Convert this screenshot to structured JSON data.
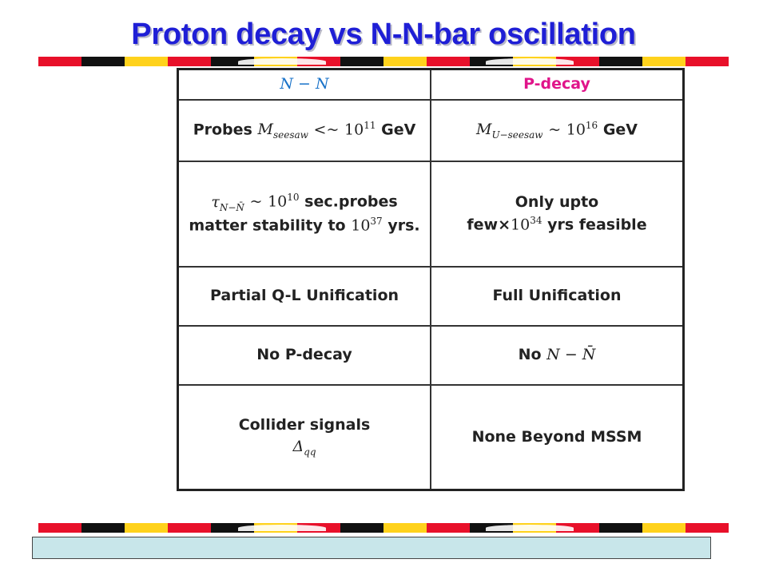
{
  "slide": {
    "title": "Proton decay vs N-N-bar oscillation"
  },
  "colors": {
    "title": "#1f1fd6",
    "stripe": [
      "#e8102a",
      "#111111",
      "#ffd21c",
      "#e8102a",
      "#111111",
      "#ffd21c"
    ],
    "footer": "#c8e6ea"
  },
  "table": {
    "headers": {
      "nn": "N − N",
      "pdecay": "P-decay"
    },
    "rows": [
      {
        "left": {
          "prefix": "Probes",
          "symbol": "M",
          "symbol_sub": "seesaw",
          "relation": "<~",
          "base": "10",
          "exp": "11",
          "unit": "GeV"
        },
        "right": {
          "symbol": "M",
          "symbol_sub": "U−seesaw",
          "relation": "~",
          "base": "10",
          "exp": "16",
          "unit": "GeV"
        }
      },
      {
        "left": {
          "symbol": "τ",
          "symbol_sub": "N−N̄",
          "relation": "~",
          "base": "10",
          "exp": "10",
          "text1": "sec.probes",
          "text2": "matter stability to",
          "base2": "10",
          "exp2": "37",
          "unit2": "yrs."
        },
        "right": {
          "line1": "Only upto",
          "prefix": "few×",
          "base": "10",
          "exp": "34",
          "suffix": "yrs feasible"
        }
      },
      {
        "left": {
          "text": "Partial Q-L Unification"
        },
        "right": {
          "text": "Full Unification"
        }
      },
      {
        "left": {
          "text": "No P-decay"
        },
        "right": {
          "prefix": "No",
          "math": "N − N̄"
        }
      },
      {
        "left": {
          "line1": "Collider signals",
          "symbol": "Δ",
          "symbol_sub": "qq"
        },
        "right": {
          "text": "None Beyond MSSM"
        }
      }
    ]
  }
}
